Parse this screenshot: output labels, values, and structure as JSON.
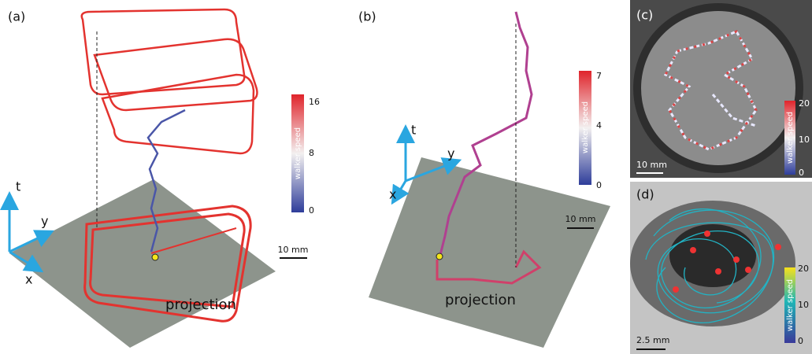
{
  "panels": [
    {
      "label": "(a)",
      "axes": [
        "t",
        "y",
        "x"
      ],
      "colorbar": {
        "label": "walker speed",
        "ticks": [
          16,
          8,
          0
        ]
      },
      "scale_bar": "10 mm",
      "annotation": "projection"
    },
    {
      "label": "(b)",
      "axes": [
        "t",
        "y",
        "x"
      ],
      "colorbar": {
        "label": "walker speed",
        "ticks": [
          7,
          4,
          0
        ]
      },
      "scale_bar": "10 mm",
      "annotation": "projection"
    },
    {
      "label": "(c)",
      "colorbar": {
        "label": "walker speed",
        "ticks": [
          20,
          10,
          0
        ]
      },
      "scale_bar": "10 mm"
    },
    {
      "label": "(d)",
      "colorbar": {
        "label": "walker speed",
        "ticks": [
          20,
          10,
          0
        ]
      },
      "scale_bar": "2.5 mm"
    }
  ]
}
